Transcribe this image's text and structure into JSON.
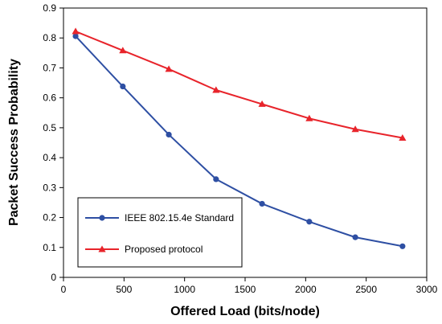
{
  "chart_data": {
    "type": "line",
    "title": "",
    "xlabel": "Offered Load  (bits/node)",
    "ylabel": "Packet Success Probability",
    "xlim": [
      0,
      3000
    ],
    "ylim": [
      0,
      0.9
    ],
    "x_ticks": [
      "0",
      "500",
      "1000",
      "1500",
      "2000",
      "2500",
      "3000"
    ],
    "y_ticks": [
      "0",
      "0.1",
      "0.2",
      "0.3",
      "0.4",
      "0.5",
      "0.6",
      "0.7",
      "0.8",
      "0.9"
    ],
    "grid": false,
    "legend_position": "bottom-left",
    "series": [
      {
        "name": "IEEE 802.15.4e Standard",
        "color": "#2e4fa3",
        "marker": "circle",
        "x": [
          100,
          490,
          870,
          1260,
          1640,
          2030,
          2410,
          2800
        ],
        "y": [
          0.806,
          0.638,
          0.477,
          0.328,
          0.246,
          0.186,
          0.134,
          0.104
        ]
      },
      {
        "name": "Proposed protocol",
        "color": "#e8242b",
        "marker": "triangle",
        "x": [
          100,
          490,
          870,
          1260,
          1640,
          2030,
          2410,
          2800
        ],
        "y": [
          0.822,
          0.758,
          0.696,
          0.626,
          0.579,
          0.531,
          0.495,
          0.466
        ]
      }
    ]
  }
}
